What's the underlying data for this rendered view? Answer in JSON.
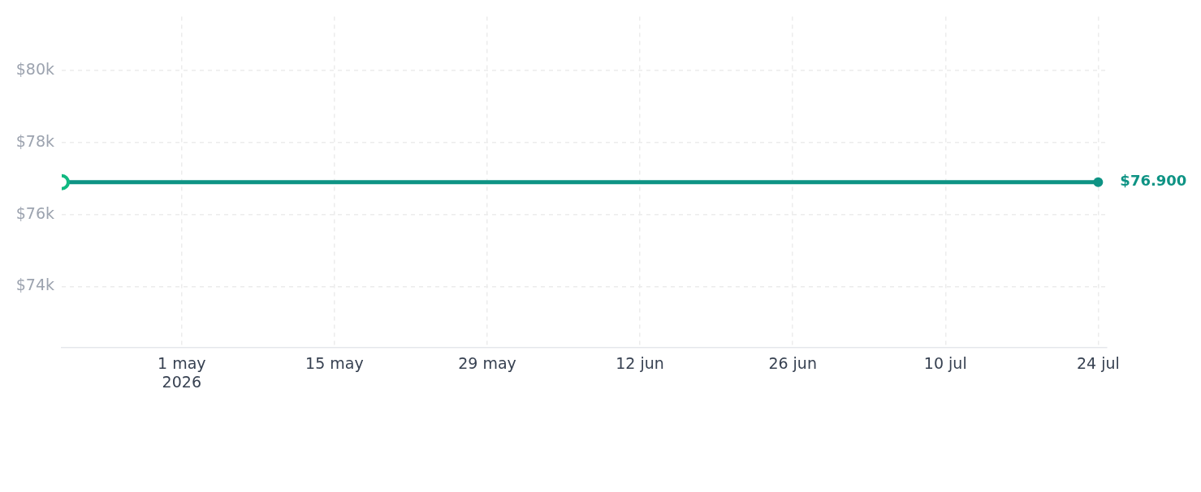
{
  "chart_data": {
    "type": "line",
    "x": [
      "2026-04-20",
      "2026-07-24"
    ],
    "series": [
      {
        "color": "#0e9384",
        "colors": [
          "#10b981",
          "#0e9384"
        ],
        "values": [
          76900,
          76900
        ],
        "value_labels": [
          null,
          "$76.900"
        ]
      }
    ],
    "xlim": [
      "2026-04-20",
      "2026-07-24T19:00"
    ],
    "xticks": [
      {
        "value": "2026-05-01",
        "label": "1 may\n2026"
      },
      {
        "value": "2026-05-15",
        "label": "15 may"
      },
      {
        "value": "2026-05-29",
        "label": "29 may"
      },
      {
        "value": "2026-06-12",
        "label": "12 jun"
      },
      {
        "value": "2026-06-26",
        "label": "26 jun"
      },
      {
        "value": "2026-07-10",
        "label": "10 jul"
      },
      {
        "value": "2026-07-24",
        "label": "24 jul"
      }
    ],
    "ylim": [
      72300,
      81500
    ],
    "yticks": [
      {
        "value": 74000,
        "label": "$74k"
      },
      {
        "value": 76000,
        "label": "$76k"
      },
      {
        "value": 78000,
        "label": "$78k"
      },
      {
        "value": 80000,
        "label": "$80k"
      }
    ],
    "grid": true,
    "marker": "circle"
  }
}
